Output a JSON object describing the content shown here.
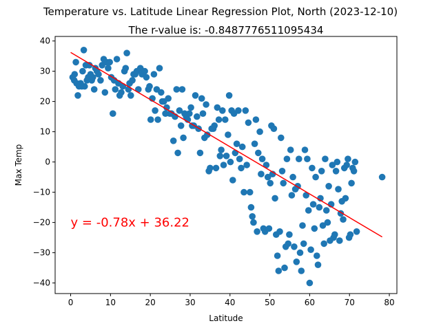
{
  "chart_data": {
    "type": "scatter",
    "title": "Temperature vs. Latitude Linear Regression Plot, North (2023-12-10)",
    "subtitle": "The r-value is: -0.8487776511095434",
    "xlabel": "Latitude",
    "ylabel": "Max Temp",
    "xlim": [
      -3.9,
      81.9
    ],
    "ylim": [
      -43.5,
      41.5
    ],
    "xticks": [
      0,
      10,
      20,
      30,
      40,
      50,
      60,
      70,
      80
    ],
    "yticks": [
      -40,
      -30,
      -20,
      -10,
      0,
      10,
      20,
      30,
      40
    ],
    "xtick_labels": [
      "0",
      "10",
      "20",
      "30",
      "40",
      "50",
      "60",
      "70",
      "80"
    ],
    "ytick_labels": [
      "−40",
      "−30",
      "−20",
      "−10",
      "0",
      "10",
      "20",
      "30",
      "40"
    ],
    "grid": false,
    "point_color": "#1f77b4",
    "line_color": "#ff0000",
    "annotation_color": "#ff0000",
    "regression": {
      "slope": -0.78,
      "intercept": 36.22,
      "x_range": [
        0,
        78.2
      ]
    },
    "equation_text": "y = -0.78x + 36.22",
    "points": [
      [
        0.5,
        28
      ],
      [
        0.9,
        27
      ],
      [
        1.0,
        29
      ],
      [
        1.3,
        33
      ],
      [
        1.5,
        26
      ],
      [
        1.8,
        22
      ],
      [
        2.1,
        25
      ],
      [
        2.5,
        26
      ],
      [
        2.8,
        25
      ],
      [
        3.0,
        30
      ],
      [
        3.3,
        37
      ],
      [
        3.5,
        25
      ],
      [
        3.8,
        32
      ],
      [
        4.1,
        27
      ],
      [
        4.4,
        28
      ],
      [
        4.7,
        32
      ],
      [
        5.0,
        29
      ],
      [
        5.3,
        27
      ],
      [
        5.6,
        28
      ],
      [
        5.9,
        24
      ],
      [
        6.2,
        31
      ],
      [
        6.6,
        30
      ],
      [
        7.0,
        29
      ],
      [
        7.5,
        27
      ],
      [
        7.9,
        32
      ],
      [
        8.3,
        34
      ],
      [
        8.6,
        23
      ],
      [
        9.0,
        33
      ],
      [
        9.4,
        31
      ],
      [
        9.8,
        33
      ],
      [
        10.2,
        28
      ],
      [
        10.6,
        16
      ],
      [
        10.9,
        27
      ],
      [
        11.2,
        24
      ],
      [
        11.6,
        34
      ],
      [
        12.0,
        26
      ],
      [
        12.3,
        22
      ],
      [
        12.7,
        23
      ],
      [
        13.1,
        25
      ],
      [
        13.5,
        30
      ],
      [
        13.8,
        31
      ],
      [
        14.1,
        36
      ],
      [
        14.5,
        24
      ],
      [
        14.8,
        26
      ],
      [
        15.1,
        22
      ],
      [
        15.5,
        27
      ],
      [
        15.8,
        29
      ],
      [
        16.2,
        29
      ],
      [
        16.6,
        30
      ],
      [
        17.0,
        24
      ],
      [
        17.5,
        31
      ],
      [
        17.9,
        29
      ],
      [
        18.2,
        30
      ],
      [
        18.6,
        30
      ],
      [
        19.0,
        28
      ],
      [
        19.5,
        24
      ],
      [
        19.8,
        25
      ],
      [
        20.1,
        14
      ],
      [
        20.5,
        21
      ],
      [
        20.9,
        29
      ],
      [
        21.2,
        17
      ],
      [
        21.6,
        24
      ],
      [
        21.9,
        14
      ],
      [
        22.3,
        31
      ],
      [
        22.7,
        23
      ],
      [
        23.0,
        20
      ],
      [
        23.4,
        20
      ],
      [
        23.8,
        16
      ],
      [
        24.1,
        18
      ],
      [
        24.5,
        21
      ],
      [
        24.9,
        16
      ],
      [
        25.3,
        16
      ],
      [
        25.8,
        7
      ],
      [
        26.2,
        15
      ],
      [
        26.6,
        24
      ],
      [
        26.9,
        3
      ],
      [
        27.3,
        17
      ],
      [
        27.7,
        12
      ],
      [
        28.0,
        24
      ],
      [
        28.3,
        8
      ],
      [
        28.6,
        16
      ],
      [
        29.0,
        15
      ],
      [
        29.4,
        14
      ],
      [
        29.8,
        16
      ],
      [
        30.2,
        18
      ],
      [
        30.5,
        12
      ],
      [
        30.9,
        12
      ],
      [
        31.3,
        22
      ],
      [
        31.7,
        15
      ],
      [
        32.1,
        11
      ],
      [
        32.5,
        3
      ],
      [
        32.9,
        21
      ],
      [
        33.2,
        16
      ],
      [
        33.6,
        8
      ],
      [
        34.0,
        19
      ],
      [
        34.3,
        9
      ],
      [
        34.7,
        -3
      ],
      [
        35.0,
        -2
      ],
      [
        35.4,
        11
      ],
      [
        35.8,
        11
      ],
      [
        36.1,
        12
      ],
      [
        36.5,
        -2
      ],
      [
        36.8,
        18
      ],
      [
        37.2,
        14
      ],
      [
        37.5,
        2
      ],
      [
        37.8,
        4
      ],
      [
        38.1,
        17
      ],
      [
        38.4,
        -1
      ],
      [
        38.8,
        14
      ],
      [
        39.1,
        2
      ],
      [
        39.5,
        9
      ],
      [
        39.8,
        22
      ],
      [
        40.1,
        0
      ],
      [
        40.4,
        17
      ],
      [
        40.7,
        -6
      ],
      [
        41.0,
        16
      ],
      [
        41.3,
        3
      ],
      [
        41.7,
        6
      ],
      [
        42.1,
        17
      ],
      [
        42.4,
        1
      ],
      [
        42.8,
        -2
      ],
      [
        43.1,
        5
      ],
      [
        43.5,
        -10
      ],
      [
        43.9,
        17
      ],
      [
        44.2,
        -1
      ],
      [
        44.6,
        13
      ],
      [
        45.0,
        -10
      ],
      [
        45.3,
        -15
      ],
      [
        45.6,
        -18
      ],
      [
        45.9,
        -20
      ],
      [
        46.2,
        6
      ],
      [
        46.5,
        14
      ],
      [
        46.8,
        -23
      ],
      [
        47.1,
        3
      ],
      [
        47.5,
        10
      ],
      [
        47.8,
        -4
      ],
      [
        48.1,
        1
      ],
      [
        48.4,
        -22
      ],
      [
        48.8,
        -23
      ],
      [
        49.1,
        -1
      ],
      [
        49.5,
        -5
      ],
      [
        49.8,
        -22
      ],
      [
        50.1,
        -7
      ],
      [
        50.4,
        12
      ],
      [
        50.7,
        -4
      ],
      [
        51.0,
        11
      ],
      [
        51.3,
        -12
      ],
      [
        51.6,
        -24
      ],
      [
        51.9,
        -31
      ],
      [
        52.2,
        -36
      ],
      [
        52.5,
        -23
      ],
      [
        52.8,
        8
      ],
      [
        53.1,
        -3
      ],
      [
        53.4,
        -7
      ],
      [
        53.7,
        -35
      ],
      [
        54.0,
        -28
      ],
      [
        54.3,
        1
      ],
      [
        54.6,
        -27
      ],
      [
        54.9,
        -24
      ],
      [
        55.2,
        4
      ],
      [
        55.5,
        -11
      ],
      [
        55.8,
        -5
      ],
      [
        56.1,
        -28
      ],
      [
        56.4,
        -9
      ],
      [
        56.7,
        -33
      ],
      [
        57.0,
        -8
      ],
      [
        57.3,
        1
      ],
      [
        57.6,
        -30
      ],
      [
        57.9,
        -36
      ],
      [
        58.2,
        -21
      ],
      [
        58.5,
        -27
      ],
      [
        58.8,
        4
      ],
      [
        59.1,
        -11
      ],
      [
        59.4,
        1
      ],
      [
        59.7,
        -16
      ],
      [
        60.0,
        -40
      ],
      [
        60.3,
        -29
      ],
      [
        60.6,
        -2
      ],
      [
        60.9,
        -14
      ],
      [
        61.2,
        -22
      ],
      [
        61.5,
        -5
      ],
      [
        61.8,
        -31
      ],
      [
        62.1,
        -34
      ],
      [
        62.4,
        -15
      ],
      [
        62.7,
        -12
      ],
      [
        63.0,
        -3
      ],
      [
        63.3,
        -21
      ],
      [
        63.6,
        -27
      ],
      [
        63.9,
        1
      ],
      [
        64.2,
        -16
      ],
      [
        64.5,
        -20
      ],
      [
        64.8,
        -8
      ],
      [
        65.1,
        -26
      ],
      [
        65.4,
        -14
      ],
      [
        65.7,
        -1
      ],
      [
        66.0,
        -25
      ],
      [
        66.3,
        -24
      ],
      [
        66.6,
        -3
      ],
      [
        66.9,
        0
      ],
      [
        67.2,
        -9
      ],
      [
        67.5,
        -26
      ],
      [
        67.8,
        -17
      ],
      [
        68.1,
        -13
      ],
      [
        68.4,
        -19
      ],
      [
        68.7,
        -2
      ],
      [
        69.0,
        -12
      ],
      [
        69.3,
        -1
      ],
      [
        69.6,
        1
      ],
      [
        69.9,
        -25
      ],
      [
        70.2,
        -24
      ],
      [
        70.5,
        -7
      ],
      [
        70.8,
        -2
      ],
      [
        71.1,
        -3
      ],
      [
        71.4,
        0
      ],
      [
        71.8,
        -23
      ],
      [
        78.2,
        -5
      ]
    ]
  }
}
